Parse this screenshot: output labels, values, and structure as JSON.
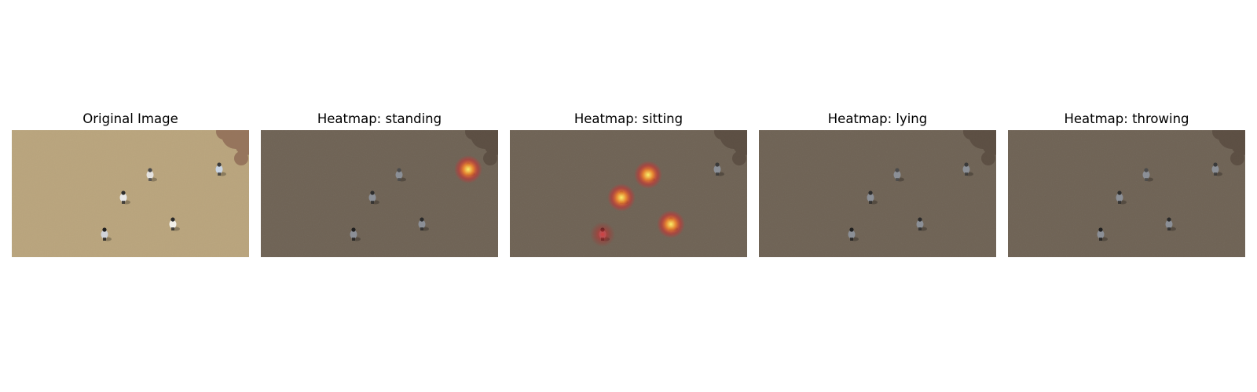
{
  "panels": [
    {
      "title": "Original Image",
      "mode": "original",
      "hotspots": []
    },
    {
      "title": "Heatmap: standing",
      "mode": "heatmap",
      "hotspots": [
        {
          "person": 0,
          "intensity": "high"
        }
      ]
    },
    {
      "title": "Heatmap: sitting",
      "mode": "heatmap",
      "hotspots": [
        {
          "person": 1,
          "intensity": "high"
        },
        {
          "person": 2,
          "intensity": "high"
        },
        {
          "person": 4,
          "intensity": "high"
        },
        {
          "person": 3,
          "intensity": "low"
        }
      ]
    },
    {
      "title": "Heatmap: lying",
      "mode": "heatmap",
      "hotspots": []
    },
    {
      "title": "Heatmap: throwing",
      "mode": "heatmap",
      "hotspots": []
    }
  ],
  "colors": {
    "ground": "#b9a47c",
    "ground_dim": "#6e6254",
    "heat_core": "#f7f06a",
    "heat_mid": "#f28a2e",
    "heat_edge": "#e2262a"
  }
}
